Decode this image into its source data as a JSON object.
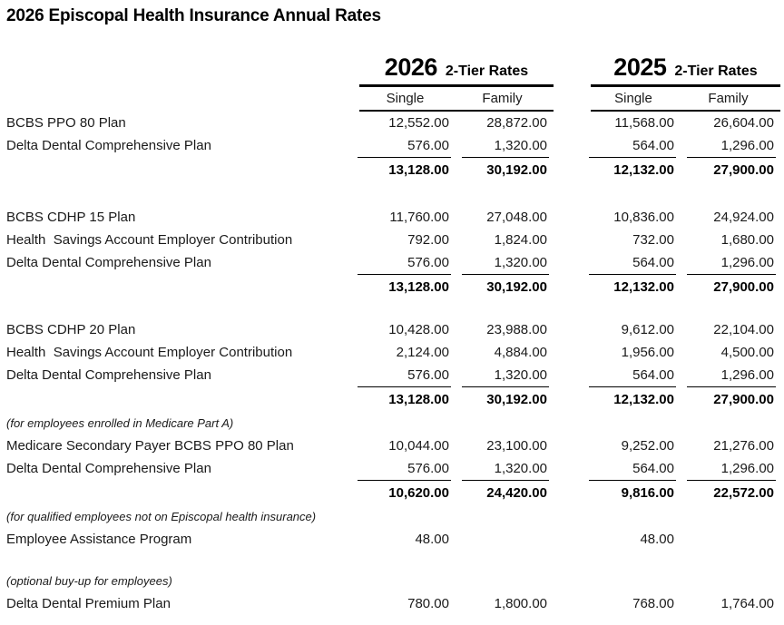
{
  "title": "2026 Episcopal Health Insurance Annual Rates",
  "colors": {
    "background": "#ffffff",
    "text": "#1a1a1a",
    "title": "#000000",
    "rule": "#000000"
  },
  "column_groups": [
    {
      "year": "2026",
      "label": "2-Tier Rates",
      "columns": [
        "Single",
        "Family"
      ]
    },
    {
      "year": "2025",
      "label": "2-Tier Rates",
      "columns": [
        "Single",
        "Family"
      ]
    }
  ],
  "sections": [
    {
      "rows": [
        {
          "label": "BCBS PPO 80 Plan",
          "values": [
            "12,552.00",
            "28,872.00",
            "11,568.00",
            "26,604.00"
          ]
        },
        {
          "label": "Delta Dental Comprehensive Plan",
          "values": [
            "576.00",
            "1,320.00",
            "564.00",
            "1,296.00"
          ],
          "underline": true
        }
      ],
      "total": [
        "13,128.00",
        "30,192.00",
        "12,132.00",
        "27,900.00"
      ]
    },
    {
      "rows": [
        {
          "label": "BCBS CDHP 15 Plan",
          "values": [
            "11,760.00",
            "27,048.00",
            "10,836.00",
            "24,924.00"
          ]
        },
        {
          "label": "Health  Savings Account Employer Contribution",
          "values": [
            "792.00",
            "1,824.00",
            "732.00",
            "1,680.00"
          ]
        },
        {
          "label": "Delta Dental Comprehensive Plan",
          "values": [
            "576.00",
            "1,320.00",
            "564.00",
            "1,296.00"
          ],
          "underline": true
        }
      ],
      "total": [
        "13,128.00",
        "30,192.00",
        "12,132.00",
        "27,900.00"
      ]
    },
    {
      "rows": [
        {
          "label": "BCBS CDHP 20 Plan",
          "values": [
            "10,428.00",
            "23,988.00",
            "9,612.00",
            "22,104.00"
          ]
        },
        {
          "label": "Health  Savings Account Employer Contribution",
          "values": [
            "2,124.00",
            "4,884.00",
            "1,956.00",
            "4,500.00"
          ]
        },
        {
          "label": "Delta Dental Comprehensive Plan",
          "values": [
            "576.00",
            "1,320.00",
            "564.00",
            "1,296.00"
          ],
          "underline": true
        }
      ],
      "total": [
        "13,128.00",
        "30,192.00",
        "12,132.00",
        "27,900.00"
      ]
    },
    {
      "note": "(for employees enrolled in Medicare Part A)",
      "rows": [
        {
          "label": "Medicare Secondary Payer BCBS PPO 80 Plan",
          "values": [
            "10,044.00",
            "23,100.00",
            "9,252.00",
            "21,276.00"
          ]
        },
        {
          "label": "Delta Dental Comprehensive Plan",
          "values": [
            "576.00",
            "1,320.00",
            "564.00",
            "1,296.00"
          ],
          "underline": true
        }
      ],
      "total": [
        "10,620.00",
        "24,420.00",
        "9,816.00",
        "22,572.00"
      ]
    },
    {
      "note": "(for qualified employees not on Episcopal health insurance)",
      "rows": [
        {
          "label": "Employee Assistance Program",
          "values": [
            "48.00",
            "",
            "48.00",
            ""
          ]
        }
      ]
    },
    {
      "note": "(optional buy-up for employees)",
      "rows": [
        {
          "label": "Delta Dental Premium Plan",
          "values": [
            "780.00",
            "1,800.00",
            "768.00",
            "1,764.00"
          ]
        }
      ]
    }
  ]
}
